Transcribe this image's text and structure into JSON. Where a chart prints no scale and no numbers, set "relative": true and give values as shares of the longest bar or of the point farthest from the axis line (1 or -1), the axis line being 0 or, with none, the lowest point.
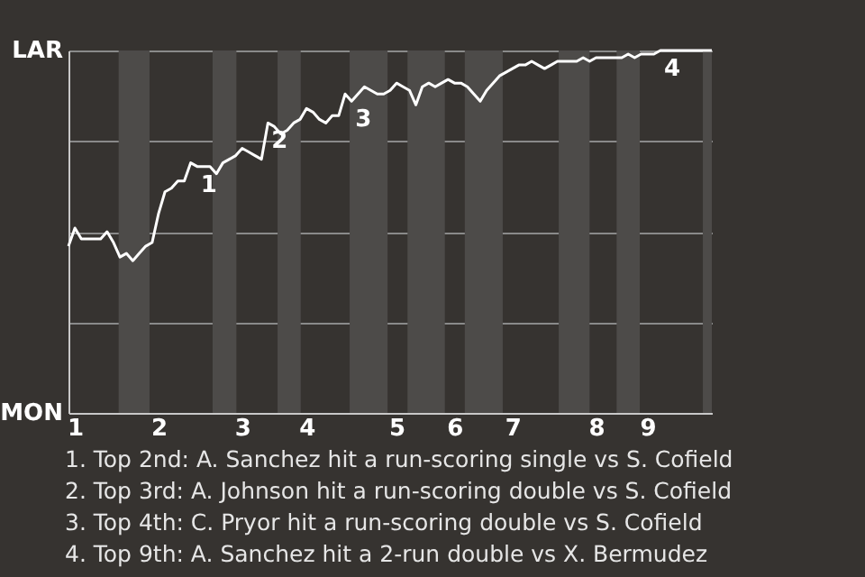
{
  "chart_data": {
    "type": "line",
    "relative": true,
    "categories": [
      null,
      "1",
      null,
      null,
      null,
      null,
      null,
      null,
      null,
      null,
      null,
      null,
      null,
      null,
      "2",
      null,
      null,
      null,
      null,
      null,
      null,
      null,
      null,
      null,
      null,
      null,
      null,
      "3",
      null,
      null,
      null,
      null,
      null,
      null,
      null,
      null,
      null,
      "4",
      null,
      null,
      null,
      null,
      null,
      null,
      null,
      null,
      null,
      null,
      null,
      null,
      null,
      "5",
      null,
      null,
      null,
      null,
      null,
      null,
      null,
      null,
      "6",
      null,
      null,
      null,
      null,
      null,
      null,
      null,
      null,
      "7",
      null,
      null,
      null,
      null,
      null,
      null,
      null,
      null,
      null,
      null,
      null,
      null,
      "8",
      null,
      null,
      null,
      null,
      null,
      null,
      null,
      "9",
      null,
      null,
      null,
      null,
      null,
      null,
      null,
      null,
      null,
      null
    ],
    "series": [
      {
        "color": "#ffffff",
        "values": [
          0.46,
          0.51,
          0.48,
          0.48,
          0.48,
          0.48,
          0.5,
          0.47,
          0.43,
          0.44,
          0.42,
          0.44,
          0.46,
          0.47,
          0.55,
          0.61,
          0.62,
          0.64,
          0.64,
          0.69,
          0.68,
          0.68,
          0.68,
          0.66,
          0.69,
          0.7,
          0.71,
          0.73,
          0.72,
          0.71,
          0.7,
          0.8,
          0.79,
          0.77,
          0.78,
          0.8,
          0.81,
          0.84,
          0.83,
          0.81,
          0.8,
          0.82,
          0.82,
          0.88,
          0.86,
          0.88,
          0.9,
          0.89,
          0.88,
          0.88,
          0.89,
          0.91,
          0.9,
          0.89,
          0.85,
          0.9,
          0.91,
          0.9,
          0.91,
          0.92,
          0.91,
          0.91,
          0.9,
          0.88,
          0.86,
          0.89,
          0.91,
          0.93,
          0.94,
          0.95,
          0.96,
          0.96,
          0.97,
          0.96,
          0.95,
          0.96,
          0.97,
          0.97,
          0.97,
          0.97,
          0.98,
          0.97,
          0.98,
          0.98,
          0.98,
          0.98,
          0.98,
          0.99,
          0.98,
          0.99,
          0.99,
          0.99,
          1,
          1,
          1,
          1,
          1,
          1,
          1,
          1,
          1
        ]
      }
    ],
    "grid": "y",
    "annotations": [
      "LAR",
      "MON",
      {
        "text": "1",
        "y": 0.68
      },
      {
        "text": "2",
        "y": 0.8
      },
      {
        "text": "3",
        "y": 0.86
      },
      {
        "text": "4",
        "y": 1
      },
      "1. Top 2nd: A. Sanchez hit a run-scoring single vs S. Cofield",
      "2. Top 3rd: A. Johnson hit a run-scoring double vs S. Cofield",
      "3. Top 4th: C. Pryor hit a run-scoring double vs S. Cofield",
      "4. Top 9th: A. Sanchez hit a 2-run double vs X. Bermudez"
    ]
  }
}
